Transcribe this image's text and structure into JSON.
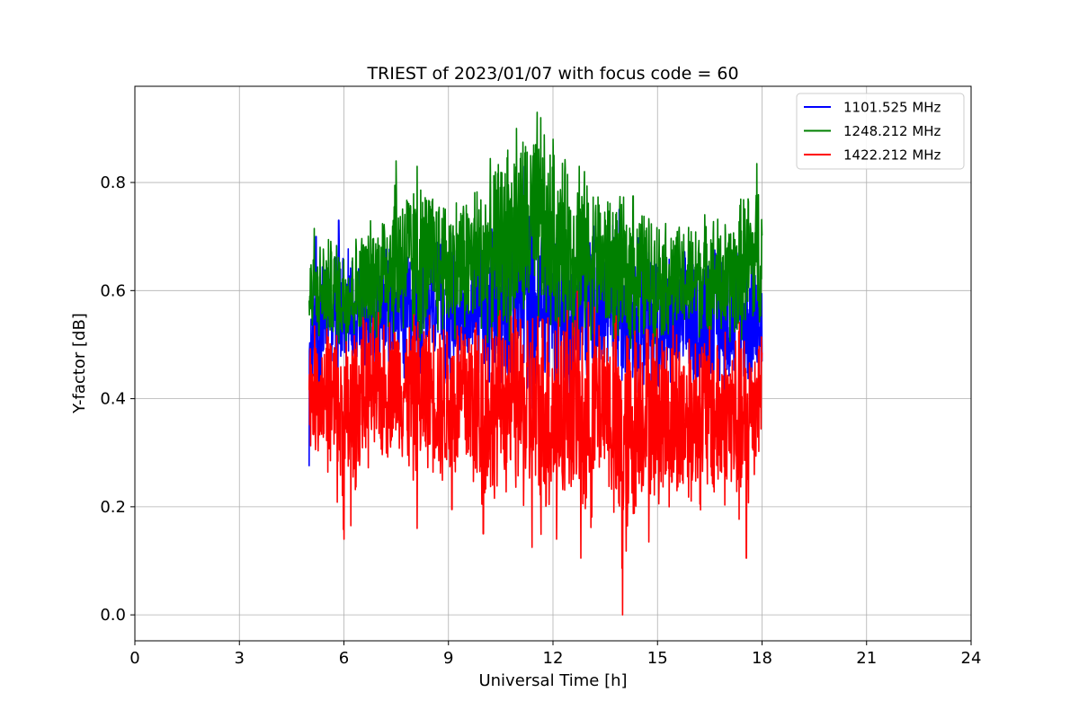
{
  "chart_data": {
    "type": "line",
    "title": "TRIEST of 2023/01/07 with focus code = 60",
    "xlabel": "Universal Time [h]",
    "ylabel": "Y-factor [dB]",
    "xlim": [
      0,
      24
    ],
    "ylim": [
      -0.048,
      0.978
    ],
    "xticks": [
      0,
      3,
      6,
      9,
      12,
      15,
      18,
      21,
      24
    ],
    "xtick_labels": [
      "0",
      "3",
      "6",
      "9",
      "12",
      "15",
      "18",
      "21",
      "24"
    ],
    "yticks": [
      0.0,
      0.2,
      0.4,
      0.6,
      0.8
    ],
    "ytick_labels": [
      "0.0",
      "0.2",
      "0.4",
      "0.6",
      "0.8"
    ],
    "grid": true,
    "legend_position": "top-right",
    "series": [
      {
        "name": "1101.525 MHz",
        "color": "#0000ff",
        "x": [
          5.0,
          5.5,
          6.0,
          6.5,
          7.0,
          7.5,
          8.0,
          8.5,
          9.0,
          9.5,
          10.0,
          10.5,
          11.0,
          11.5,
          12.0,
          12.5,
          13.0,
          13.5,
          14.0,
          14.5,
          15.0,
          15.5,
          16.0,
          16.5,
          17.0,
          17.5,
          18.0
        ],
        "upper": [
          0.66,
          0.68,
          0.73,
          0.68,
          0.67,
          0.7,
          0.68,
          0.7,
          0.72,
          0.7,
          0.73,
          0.74,
          0.78,
          0.8,
          0.76,
          0.72,
          0.74,
          0.74,
          0.75,
          0.72,
          0.7,
          0.68,
          0.68,
          0.7,
          0.71,
          0.71,
          0.68
        ],
        "lower": [
          0.28,
          0.46,
          0.42,
          0.44,
          0.43,
          0.42,
          0.38,
          0.44,
          0.4,
          0.44,
          0.42,
          0.4,
          0.4,
          0.36,
          0.4,
          0.38,
          0.4,
          0.4,
          0.4,
          0.4,
          0.38,
          0.4,
          0.4,
          0.4,
          0.4,
          0.4,
          0.4
        ]
      },
      {
        "name": "1248.212 MHz",
        "color": "#008000",
        "x": [
          5.0,
          5.5,
          6.0,
          6.5,
          7.0,
          7.5,
          8.0,
          8.5,
          9.0,
          9.5,
          10.0,
          10.5,
          11.0,
          11.5,
          12.0,
          12.5,
          13.0,
          13.5,
          14.0,
          14.5,
          15.0,
          15.5,
          16.0,
          16.5,
          17.0,
          17.5,
          18.0
        ],
        "upper": [
          0.68,
          0.71,
          0.7,
          0.72,
          0.76,
          0.84,
          0.82,
          0.81,
          0.79,
          0.8,
          0.83,
          0.87,
          0.91,
          0.93,
          0.88,
          0.85,
          0.83,
          0.8,
          0.78,
          0.77,
          0.75,
          0.73,
          0.74,
          0.76,
          0.74,
          0.8,
          0.83
        ],
        "lower": [
          0.48,
          0.5,
          0.48,
          0.5,
          0.5,
          0.5,
          0.48,
          0.5,
          0.5,
          0.5,
          0.5,
          0.48,
          0.5,
          0.5,
          0.5,
          0.5,
          0.5,
          0.5,
          0.48,
          0.48,
          0.5,
          0.5,
          0.5,
          0.5,
          0.48,
          0.5,
          0.5
        ]
      },
      {
        "name": "1422.212 MHz",
        "color": "#ff0000",
        "x": [
          5.0,
          5.5,
          6.0,
          6.5,
          7.0,
          7.5,
          8.0,
          8.5,
          9.0,
          9.5,
          10.0,
          10.5,
          11.0,
          11.5,
          12.0,
          12.5,
          13.0,
          13.5,
          14.0,
          14.5,
          15.0,
          15.5,
          16.0,
          16.5,
          17.0,
          17.5,
          18.0
        ],
        "upper": [
          0.54,
          0.56,
          0.55,
          0.56,
          0.57,
          0.57,
          0.57,
          0.58,
          0.58,
          0.6,
          0.6,
          0.58,
          0.59,
          0.6,
          0.62,
          0.6,
          0.6,
          0.58,
          0.57,
          0.57,
          0.56,
          0.57,
          0.56,
          0.56,
          0.56,
          0.56,
          0.55
        ],
        "lower": [
          0.3,
          0.26,
          0.14,
          0.26,
          0.25,
          0.3,
          0.22,
          0.26,
          0.2,
          0.22,
          0.15,
          0.22,
          0.19,
          0.13,
          0.14,
          0.2,
          0.11,
          0.25,
          0.0,
          0.2,
          0.18,
          0.16,
          0.18,
          0.18,
          0.18,
          0.11,
          0.32
        ]
      }
    ],
    "spikes": [
      {
        "series": 0,
        "x": 5.0,
        "y": 0.275
      },
      {
        "series": 0,
        "x": 5.2,
        "y": 0.7
      },
      {
        "series": 0,
        "x": 5.85,
        "y": 0.73
      },
      {
        "series": 0,
        "x": 11.15,
        "y": 0.83
      },
      {
        "series": 0,
        "x": 13.9,
        "y": 0.75
      },
      {
        "series": 1,
        "x": 5.15,
        "y": 0.715
      },
      {
        "series": 1,
        "x": 7.5,
        "y": 0.84
      },
      {
        "series": 1,
        "x": 8.1,
        "y": 0.83
      },
      {
        "series": 1,
        "x": 10.7,
        "y": 0.86
      },
      {
        "series": 1,
        "x": 10.95,
        "y": 0.9
      },
      {
        "series": 1,
        "x": 11.55,
        "y": 0.93
      },
      {
        "series": 1,
        "x": 11.65,
        "y": 0.92
      },
      {
        "series": 1,
        "x": 12.0,
        "y": 0.88
      },
      {
        "series": 1,
        "x": 12.75,
        "y": 0.83
      },
      {
        "series": 1,
        "x": 14.3,
        "y": 0.775
      },
      {
        "series": 1,
        "x": 17.85,
        "y": 0.835
      },
      {
        "series": 2,
        "x": 6.0,
        "y": 0.14
      },
      {
        "series": 2,
        "x": 6.2,
        "y": 0.165
      },
      {
        "series": 2,
        "x": 8.1,
        "y": 0.16
      },
      {
        "series": 2,
        "x": 9.1,
        "y": 0.195
      },
      {
        "series": 2,
        "x": 10.0,
        "y": 0.15
      },
      {
        "series": 2,
        "x": 11.4,
        "y": 0.125
      },
      {
        "series": 2,
        "x": 12.1,
        "y": 0.14
      },
      {
        "series": 2,
        "x": 12.8,
        "y": 0.105
      },
      {
        "series": 2,
        "x": 14.0,
        "y": 0.0
      },
      {
        "series": 2,
        "x": 14.75,
        "y": 0.135
      },
      {
        "series": 2,
        "x": 17.55,
        "y": 0.105
      }
    ]
  }
}
